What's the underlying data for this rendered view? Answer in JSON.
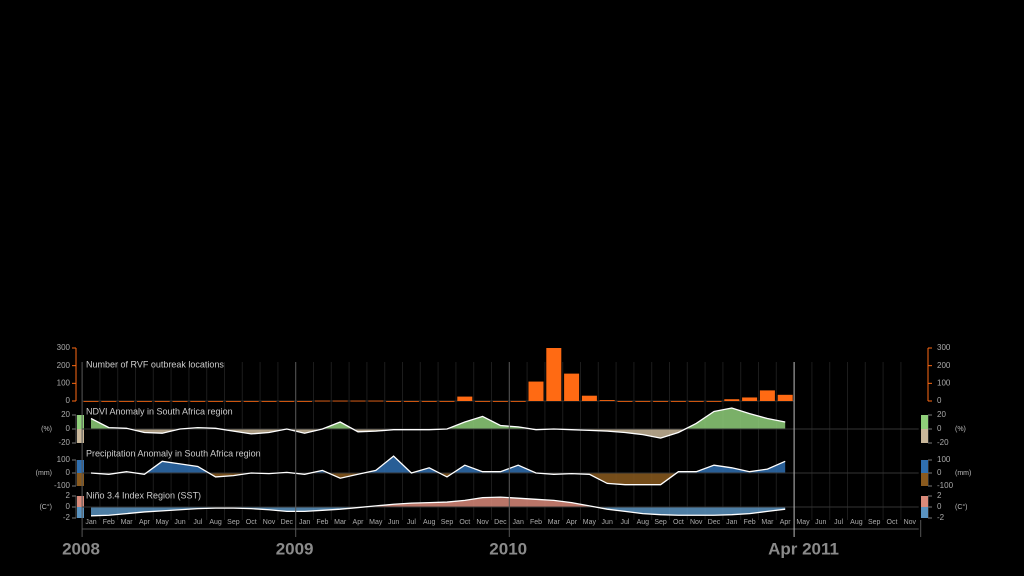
{
  "x_axis": {
    "categories": [
      "Jan",
      "Feb",
      "Mar",
      "Apr",
      "May",
      "Jun",
      "Jul",
      "Aug",
      "Sep",
      "Oct",
      "Nov",
      "Dec",
      "Jan",
      "Feb",
      "Mar",
      "Apr",
      "May",
      "Jun",
      "Jul",
      "Aug",
      "Sep",
      "Oct",
      "Nov",
      "Dec",
      "Jan",
      "Feb",
      "Mar",
      "Apr",
      "May",
      "Jun",
      "Jul",
      "Aug",
      "Sep",
      "Oct",
      "Nov",
      "Dec",
      "Jan",
      "Feb",
      "Mar",
      "Apr",
      "May",
      "Jun",
      "Jul",
      "Aug",
      "Sep",
      "Oct",
      "Nov"
    ],
    "year_labels": [
      {
        "label": "2008",
        "month": 0
      },
      {
        "label": "2009",
        "month": 12
      },
      {
        "label": "2010",
        "month": 24
      },
      {
        "label": "Apr 2011",
        "month": 39
      }
    ]
  },
  "chart_data": [
    {
      "type": "bar",
      "title": "Number of RVF outbreak locations",
      "color": "#ff6a13",
      "ylim": [
        0,
        300
      ],
      "yticks": [
        0,
        100,
        200,
        300
      ],
      "values": [
        0,
        0,
        0,
        0,
        0,
        0,
        0,
        0,
        0,
        0,
        0,
        0,
        0,
        2,
        2,
        2,
        2,
        0,
        0,
        0,
        0,
        25,
        0,
        0,
        0,
        110,
        300,
        155,
        30,
        5,
        0,
        0,
        0,
        0,
        0,
        0,
        10,
        20,
        60,
        35
      ]
    },
    {
      "type": "area",
      "title": "NDVI Anomaly in South Africa region",
      "unit": "(%)",
      "line": "#ffffff",
      "pos_color": "#8fcf7a",
      "neg_color": "#c9b79a",
      "ylim": [
        -20,
        20
      ],
      "yticks": [
        20,
        0,
        -20
      ],
      "values": [
        15,
        2,
        1,
        -5,
        -6,
        0,
        2,
        1,
        -3,
        -7,
        -5,
        0,
        -6,
        0,
        10,
        -4,
        -3,
        -1,
        -1,
        -1,
        0,
        10,
        18,
        5,
        3,
        -1,
        0,
        -1,
        -2,
        -3,
        -5,
        -8,
        -13,
        -5,
        8,
        25,
        30,
        22,
        15,
        10
      ]
    },
    {
      "type": "area",
      "title": "Precipitation Anomaly in South Africa region",
      "unit": "(mm)",
      "line": "#ffffff",
      "pos_color": "#2f6fb0",
      "neg_color": "#8a5a1e",
      "ylim": [
        -100,
        100
      ],
      "yticks": [
        100,
        0,
        -100
      ],
      "values": [
        0,
        -10,
        10,
        -10,
        90,
        70,
        50,
        -30,
        -20,
        0,
        -5,
        5,
        -10,
        20,
        -40,
        -10,
        20,
        130,
        0,
        40,
        -30,
        60,
        10,
        10,
        60,
        0,
        -10,
        -5,
        -10,
        -80,
        -90,
        -90,
        -90,
        10,
        10,
        60,
        40,
        10,
        30,
        90
      ]
    },
    {
      "type": "area",
      "title": "Niño 3.4 Index Region (SST)",
      "unit": "(C°)",
      "line": "#ffffff",
      "pos_color": "#d98a7a",
      "neg_color": "#5a93c0",
      "ylim": [
        -2,
        2
      ],
      "yticks": [
        2,
        0,
        -2
      ],
      "values": [
        -1.6,
        -1.5,
        -1.2,
        -0.9,
        -0.7,
        -0.5,
        -0.3,
        -0.2,
        -0.2,
        -0.3,
        -0.5,
        -0.8,
        -0.8,
        -0.6,
        -0.4,
        -0.1,
        0.2,
        0.5,
        0.7,
        0.8,
        0.9,
        1.2,
        1.7,
        1.8,
        1.6,
        1.4,
        1.2,
        0.8,
        0.2,
        -0.4,
        -0.8,
        -1.2,
        -1.4,
        -1.5,
        -1.5,
        -1.5,
        -1.4,
        -1.2,
        -0.8,
        -0.4
      ]
    }
  ]
}
